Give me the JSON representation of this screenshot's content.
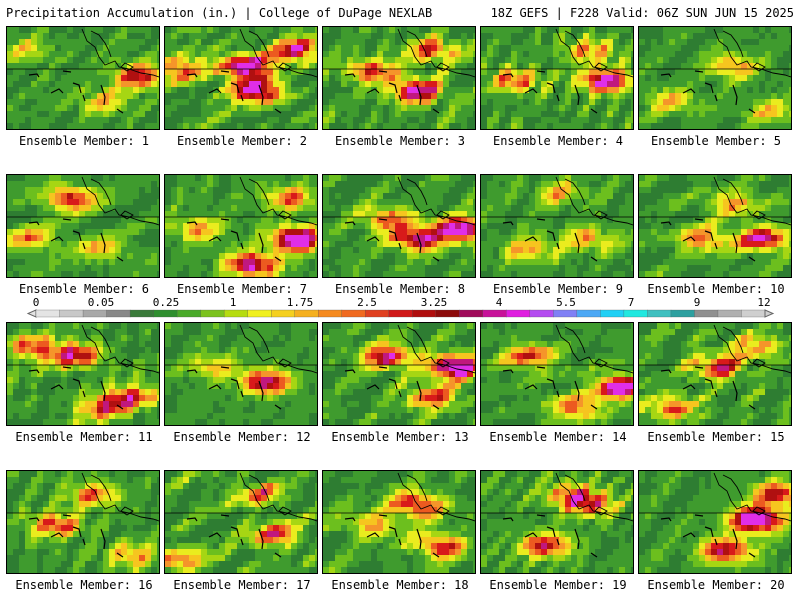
{
  "header": {
    "left": "Precipitation Accumulation (in.) | College of DuPage NEXLAB",
    "right": "18Z GEFS | F228 Valid: 06Z SUN JUN 15 2025"
  },
  "panels": [
    {
      "label": "Ensemble Member: 1",
      "hot": [
        [
          0.85,
          0.45,
          0.9
        ],
        [
          0.6,
          0.7,
          0.5
        ],
        [
          0.1,
          0.2,
          0.4
        ]
      ],
      "seed": 11
    },
    {
      "label": "Ensemble Member: 2",
      "hot": [
        [
          0.5,
          0.35,
          1.2
        ],
        [
          0.6,
          0.6,
          1.1
        ],
        [
          0.1,
          0.4,
          0.7
        ],
        [
          0.85,
          0.2,
          0.9
        ]
      ],
      "seed": 22
    },
    {
      "label": "Ensemble Member: 3",
      "hot": [
        [
          0.6,
          0.6,
          1.1
        ],
        [
          0.3,
          0.4,
          0.8
        ],
        [
          0.7,
          0.2,
          0.8
        ]
      ],
      "seed": 33
    },
    {
      "label": "Ensemble Member: 4",
      "hot": [
        [
          0.8,
          0.5,
          1.1
        ],
        [
          0.2,
          0.5,
          0.7
        ],
        [
          0.7,
          0.2,
          0.6
        ]
      ],
      "seed": 44
    },
    {
      "label": "Ensemble Member: 5",
      "hot": [
        [
          0.6,
          0.35,
          0.6
        ],
        [
          0.2,
          0.7,
          0.5
        ],
        [
          0.85,
          0.8,
          0.5
        ]
      ],
      "seed": 55
    },
    {
      "label": "Ensemble Member: 6",
      "hot": [
        [
          0.4,
          0.2,
          0.9
        ],
        [
          0.15,
          0.6,
          0.6
        ],
        [
          0.6,
          0.7,
          0.5
        ]
      ],
      "seed": 66
    },
    {
      "label": "Ensemble Member: 7",
      "hot": [
        [
          0.85,
          0.6,
          1.3
        ],
        [
          0.55,
          0.85,
          1.1
        ],
        [
          0.2,
          0.5,
          0.6
        ],
        [
          0.8,
          0.2,
          0.7
        ]
      ],
      "seed": 77
    },
    {
      "label": "Ensemble Member: 8",
      "hot": [
        [
          0.9,
          0.5,
          1.2
        ],
        [
          0.6,
          0.6,
          1.0
        ],
        [
          0.4,
          0.4,
          0.7
        ]
      ],
      "seed": 88
    },
    {
      "label": "Ensemble Member: 9",
      "hot": [
        [
          0.3,
          0.7,
          0.6
        ],
        [
          0.7,
          0.6,
          0.6
        ],
        [
          0.5,
          0.15,
          0.5
        ]
      ],
      "seed": 99
    },
    {
      "label": "Ensemble Member: 10",
      "hot": [
        [
          0.8,
          0.6,
          1.0
        ],
        [
          0.4,
          0.6,
          0.7
        ],
        [
          0.6,
          0.25,
          0.6
        ]
      ],
      "seed": 110
    },
    {
      "label": "Ensemble Member: 11",
      "hot": [
        [
          0.45,
          0.3,
          0.9
        ],
        [
          0.8,
          0.7,
          0.8
        ],
        [
          0.15,
          0.2,
          0.8
        ],
        [
          0.6,
          0.8,
          0.7
        ]
      ],
      "seed": 121
    },
    {
      "label": "Ensemble Member: 12",
      "hot": [
        [
          0.65,
          0.55,
          1.0
        ],
        [
          0.3,
          0.4,
          0.5
        ]
      ],
      "seed": 132
    },
    {
      "label": "Ensemble Member: 13",
      "hot": [
        [
          0.85,
          0.4,
          1.3
        ],
        [
          0.4,
          0.3,
          1.0
        ],
        [
          0.7,
          0.7,
          0.8
        ]
      ],
      "seed": 143
    },
    {
      "label": "Ensemble Member: 14",
      "hot": [
        [
          0.9,
          0.6,
          1.2
        ],
        [
          0.3,
          0.3,
          0.8
        ],
        [
          0.6,
          0.8,
          0.7
        ]
      ],
      "seed": 154
    },
    {
      "label": "Ensemble Member: 15",
      "hot": [
        [
          0.5,
          0.4,
          0.9
        ],
        [
          0.2,
          0.8,
          0.7
        ],
        [
          0.75,
          0.2,
          0.6
        ]
      ],
      "seed": 165
    },
    {
      "label": "Ensemble Member: 16",
      "hot": [
        [
          0.3,
          0.5,
          0.8
        ],
        [
          0.55,
          0.2,
          0.7
        ],
        [
          0.8,
          0.8,
          0.6
        ]
      ],
      "seed": 176
    },
    {
      "label": "Ensemble Member: 17",
      "hot": [
        [
          0.7,
          0.6,
          0.8
        ],
        [
          0.6,
          0.2,
          0.6
        ],
        [
          0.1,
          0.85,
          0.6
        ]
      ],
      "seed": 187
    },
    {
      "label": "Ensemble Member: 18",
      "hot": [
        [
          0.6,
          0.3,
          1.0
        ],
        [
          0.75,
          0.7,
          0.9
        ],
        [
          0.3,
          0.5,
          0.6
        ]
      ],
      "seed": 198
    },
    {
      "label": "Ensemble Member: 19",
      "hot": [
        [
          0.4,
          0.7,
          0.9
        ],
        [
          0.7,
          0.3,
          0.8
        ],
        [
          0.55,
          0.2,
          0.6
        ]
      ],
      "seed": 209
    },
    {
      "label": "Ensemble Member: 20",
      "hot": [
        [
          0.75,
          0.45,
          1.4
        ],
        [
          0.55,
          0.75,
          1.0
        ],
        [
          0.9,
          0.2,
          0.9
        ]
      ],
      "seed": 220
    }
  ],
  "colorbar": {
    "labels": [
      "0",
      "0.05",
      "0.25",
      "1",
      "1.75",
      "2.5",
      "3.25",
      "4",
      "5.5",
      "7",
      "9",
      "12"
    ],
    "colors": [
      "#e4e4e4",
      "#c8c8c8",
      "#a8a8a8",
      "#888888",
      "#3a7a3a",
      "#2f8f2f",
      "#4aaa2a",
      "#7cc21e",
      "#b6dc10",
      "#f0f020",
      "#f5d020",
      "#f5b020",
      "#f58a20",
      "#f06a20",
      "#e04020",
      "#d01818",
      "#b00d0d",
      "#8c0a0a",
      "#a00a5a",
      "#c8129a",
      "#e01ee0",
      "#b44cf0",
      "#8080f5",
      "#4ca8f5",
      "#20d0f5",
      "#20e8e0",
      "#40c0c0",
      "#2ea0a0",
      "#909090",
      "#b0b0b0",
      "#cfcfcf"
    ]
  }
}
